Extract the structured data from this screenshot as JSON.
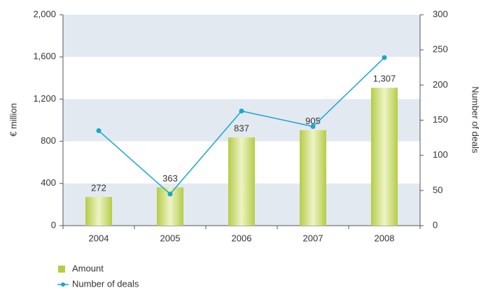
{
  "chart_data": {
    "type": "bar_line",
    "categories": [
      "2004",
      "2005",
      "2006",
      "2007",
      "2008"
    ],
    "series": [
      {
        "name": "Amount",
        "type": "bar",
        "color": "#b5cc48",
        "values": [
          272,
          363,
          837,
          905,
          1307
        ],
        "value_labels": [
          "272",
          "363",
          "837",
          "905",
          "1,307"
        ]
      },
      {
        "name": "Number of deals",
        "type": "line",
        "axis": "y2",
        "color": "#1ba6cf",
        "values": [
          135,
          45,
          163,
          141,
          239
        ]
      }
    ],
    "ylabel": "€ million",
    "y2label": "Number of deals",
    "ylim": [
      0,
      2000
    ],
    "yticks": [
      0,
      400,
      800,
      {
        "value": 1200,
        "label": "1,200"
      },
      {
        "value": 1600,
        "label": "1,600"
      },
      {
        "value": 2000,
        "label": "2,000"
      }
    ],
    "y2lim": [
      0,
      300
    ],
    "y2ticks": [
      0,
      50,
      100,
      150,
      200,
      250,
      300
    ],
    "band_color": "#e3e9f1",
    "legend": "bottom-left"
  }
}
